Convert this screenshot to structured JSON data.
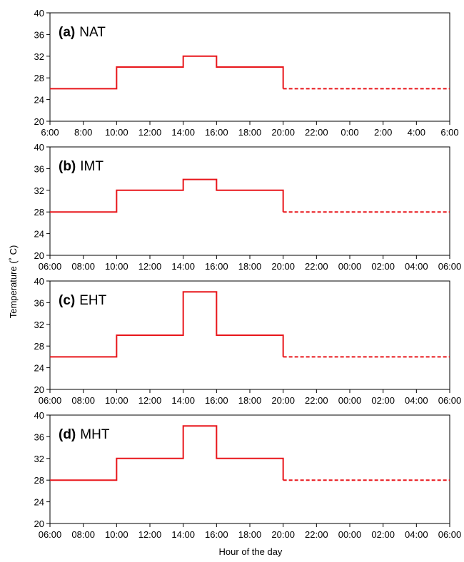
{
  "ylabel": "Temperature (˚ C)",
  "xlabel": "Hour of the day",
  "line_color": "#e8161b",
  "chart_data": [
    {
      "type": "line",
      "panel_letter": "(a)",
      "panel_name": "NAT",
      "x_ticks": [
        "6:00",
        "8:00",
        "10:00",
        "12:00",
        "14:00",
        "16:00",
        "18:00",
        "20:00",
        "22:00",
        "0:00",
        "2:00",
        "4:00",
        "6:00"
      ],
      "y_ticks": [
        20,
        24,
        28,
        32,
        36,
        40
      ],
      "ylim": [
        20,
        40
      ],
      "xlim_hours": [
        0,
        24
      ],
      "solid_steps": [
        [
          0,
          26
        ],
        [
          4,
          26
        ],
        [
          4,
          30
        ],
        [
          8,
          30
        ],
        [
          8,
          32
        ],
        [
          10,
          32
        ],
        [
          10,
          30
        ],
        [
          14,
          30
        ],
        [
          14,
          26
        ]
      ],
      "dashed": [
        [
          14,
          26
        ],
        [
          24,
          26
        ]
      ]
    },
    {
      "type": "line",
      "panel_letter": "(b)",
      "panel_name": "IMT",
      "x_ticks": [
        "06:00",
        "08:00",
        "10:00",
        "12:00",
        "14:00",
        "16:00",
        "18:00",
        "20:00",
        "22:00",
        "00:00",
        "02:00",
        "04:00",
        "06:00"
      ],
      "y_ticks": [
        20,
        24,
        28,
        32,
        36,
        40
      ],
      "ylim": [
        20,
        40
      ],
      "xlim_hours": [
        0,
        24
      ],
      "solid_steps": [
        [
          0,
          28
        ],
        [
          4,
          28
        ],
        [
          4,
          32
        ],
        [
          8,
          32
        ],
        [
          8,
          34
        ],
        [
          10,
          34
        ],
        [
          10,
          32
        ],
        [
          14,
          32
        ],
        [
          14,
          28
        ]
      ],
      "dashed": [
        [
          14,
          28
        ],
        [
          24,
          28
        ]
      ]
    },
    {
      "type": "line",
      "panel_letter": "(c)",
      "panel_name": "EHT",
      "x_ticks": [
        "06:00",
        "08:00",
        "10:00",
        "12:00",
        "14:00",
        "16:00",
        "18:00",
        "20:00",
        "22:00",
        "00:00",
        "02:00",
        "04:00",
        "06:00"
      ],
      "y_ticks": [
        20,
        24,
        28,
        32,
        36,
        40
      ],
      "ylim": [
        20,
        40
      ],
      "xlim_hours": [
        0,
        24
      ],
      "solid_steps": [
        [
          0,
          26
        ],
        [
          4,
          26
        ],
        [
          4,
          30
        ],
        [
          8,
          30
        ],
        [
          8,
          38
        ],
        [
          10,
          38
        ],
        [
          10,
          30
        ],
        [
          14,
          30
        ],
        [
          14,
          26
        ]
      ],
      "dashed": [
        [
          14,
          26
        ],
        [
          24,
          26
        ]
      ]
    },
    {
      "type": "line",
      "panel_letter": "(d)",
      "panel_name": "MHT",
      "x_ticks": [
        "06:00",
        "08:00",
        "10:00",
        "12:00",
        "14:00",
        "16:00",
        "18:00",
        "20:00",
        "22:00",
        "00:00",
        "02:00",
        "04:00",
        "06:00"
      ],
      "y_ticks": [
        20,
        24,
        28,
        32,
        36,
        40
      ],
      "ylim": [
        20,
        40
      ],
      "xlim_hours": [
        0,
        24
      ],
      "solid_steps": [
        [
          0,
          28
        ],
        [
          4,
          28
        ],
        [
          4,
          32
        ],
        [
          8,
          32
        ],
        [
          8,
          38
        ],
        [
          10,
          38
        ],
        [
          10,
          32
        ],
        [
          14,
          32
        ],
        [
          14,
          28
        ]
      ],
      "dashed": [
        [
          14,
          28
        ],
        [
          24,
          28
        ]
      ]
    }
  ]
}
